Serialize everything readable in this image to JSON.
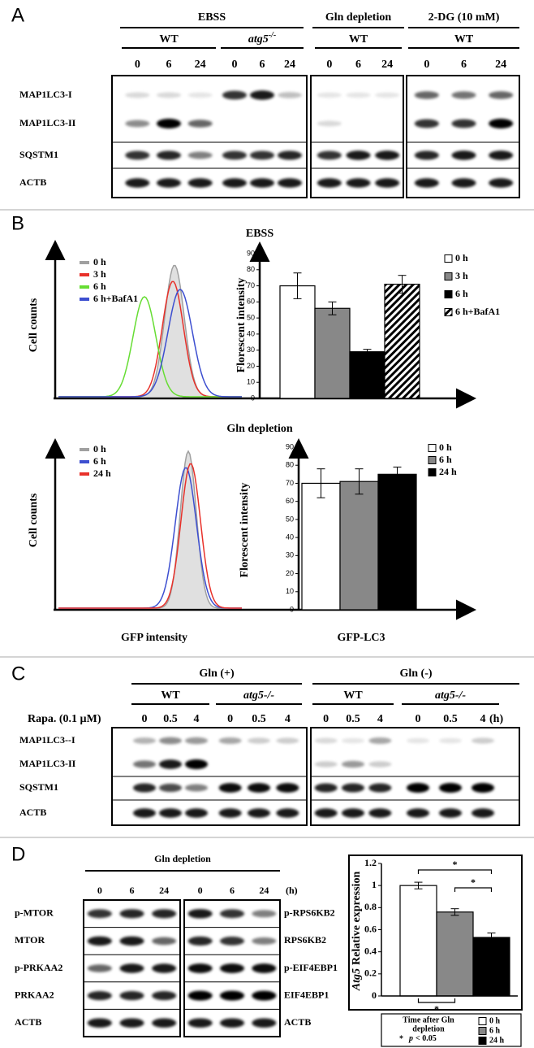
{
  "panel_a": {
    "label": "A",
    "groups": [
      {
        "title": "EBSS",
        "subgroups": [
          {
            "title": "WT",
            "lanes": [
              0,
              6,
              24
            ]
          },
          {
            "title": "atg5",
            "superscript": "-/-",
            "lanes": [
              0,
              6,
              24
            ]
          }
        ]
      },
      {
        "title": "Gln depletion",
        "subgroups": [
          {
            "title": "WT",
            "lanes": [
              0,
              6,
              24
            ]
          }
        ]
      },
      {
        "title": "2-DG (10 mM)",
        "subgroups": [
          {
            "title": "WT",
            "lanes": [
              0,
              6,
              24
            ]
          }
        ]
      }
    ],
    "rows": [
      "MAP1LC3-I",
      "MAP1LC3-II",
      "SQSTM1",
      "ACTB"
    ]
  },
  "panel_b": {
    "label": "B",
    "histograms": [
      {
        "title": "EBSS",
        "y_label": "Cell counts",
        "legend": [
          {
            "name": "0 h",
            "color": "#a0a0a0"
          },
          {
            "name": "3 h",
            "color": "#e8312a"
          },
          {
            "name": "6 h",
            "color": "#66dd33"
          },
          {
            "name": "6 h+BafA1",
            "color": "#3d4fd0"
          }
        ]
      },
      {
        "title": "Gln depletion",
        "y_label": "Cell counts",
        "x_label": "GFP intensity",
        "legend": [
          {
            "name": "0 h",
            "color": "#a0a0a0"
          },
          {
            "name": "6 h",
            "color": "#3d4fd0"
          },
          {
            "name": "24 h",
            "color": "#e8312a"
          }
        ]
      }
    ]
  },
  "panel_c": {
    "label": "C",
    "treatment": "Rapa. (0.1 µM)",
    "unit": "(h)",
    "groups": [
      {
        "title": "Gln (+)",
        "subgroups": [
          {
            "title": "WT",
            "lanes": [
              0,
              0.5,
              4
            ]
          },
          {
            "title": "atg5-/-",
            "lanes": [
              0,
              0.5,
              4
            ]
          }
        ]
      },
      {
        "title": "Gln (-)",
        "subgroups": [
          {
            "title": "WT",
            "lanes": [
              0,
              0.5,
              4
            ]
          },
          {
            "title": "atg5-/-",
            "lanes": [
              0,
              0.5,
              4
            ]
          }
        ]
      }
    ],
    "rows": [
      "MAP1LC3--I",
      "MAP1LC3-II",
      "SQSTM1",
      "ACTB"
    ]
  },
  "panel_d": {
    "label": "D",
    "title": "Gln depletion",
    "unit": "(h)",
    "blocks": [
      {
        "lanes": [
          0,
          6,
          24
        ],
        "rows": [
          "p-MTOR",
          "MTOR",
          "p-PRKAA2",
          "PRKAA2",
          "ACTB"
        ]
      },
      {
        "lanes": [
          0,
          6,
          24
        ],
        "rows": [
          "p-RPS6KB2",
          "RPS6KB2",
          "p-EIF4EBP1",
          "EIF4EBP1",
          "ACTB"
        ]
      }
    ]
  },
  "chart_data": [
    {
      "type": "bar",
      "y_label": "Florescent intensity",
      "categories": [
        "0 h",
        "3 h",
        "6 h",
        "6 h+BafA1"
      ],
      "values": [
        70,
        56,
        29,
        71
      ],
      "errors": [
        8,
        4,
        1.5,
        5.5
      ],
      "colors": [
        "#ffffff",
        "#888888",
        "#000000",
        "#ffffff"
      ],
      "hatch": [
        false,
        false,
        false,
        true
      ],
      "ylim": [
        0,
        90
      ],
      "yticks": [
        0,
        10,
        20,
        30,
        40,
        50,
        60,
        70,
        80,
        90
      ],
      "legend": "upper right"
    },
    {
      "type": "bar",
      "y_label": "Florescent intensity",
      "x_label": "GFP-LC3",
      "categories": [
        "0 h",
        "6 h",
        "24 h"
      ],
      "values": [
        70,
        71,
        75
      ],
      "errors": [
        8,
        7,
        4
      ],
      "colors": [
        "#ffffff",
        "#888888",
        "#000000"
      ],
      "hatch": [
        false,
        false,
        false
      ],
      "ylim": [
        0,
        90
      ],
      "yticks": [
        0,
        10,
        20,
        30,
        40,
        50,
        60,
        70,
        80,
        90
      ],
      "legend": "upper right"
    },
    {
      "type": "bar",
      "y_label_gene": "Atg5",
      "y_label": "Relative expression",
      "categories": [
        "0 h",
        "6 h",
        "24 h"
      ],
      "values": [
        1,
        0.76,
        0.53
      ],
      "errors": [
        0.03,
        0.03,
        0.04
      ],
      "colors": [
        "#ffffff",
        "#888888",
        "#000000"
      ],
      "hatch": [
        false,
        false,
        false
      ],
      "ylim": [
        0,
        1.2
      ],
      "yticks": [
        0,
        0.2,
        0.4,
        0.6,
        0.8,
        1,
        1.2
      ],
      "legend": "lower right",
      "legend_title": [
        "Time after Gln",
        "depletion"
      ],
      "significance": [
        {
          "text": "*",
          "pair": [
            0,
            2
          ],
          "side": "top"
        },
        {
          "text": "*",
          "pair": [
            1,
            2
          ],
          "side": "top"
        },
        {
          "text": "*",
          "pair": [
            0,
            1
          ],
          "side": "bottom"
        }
      ],
      "note_symbol": "*",
      "note_var": "p",
      "note": "< 0.05"
    }
  ]
}
